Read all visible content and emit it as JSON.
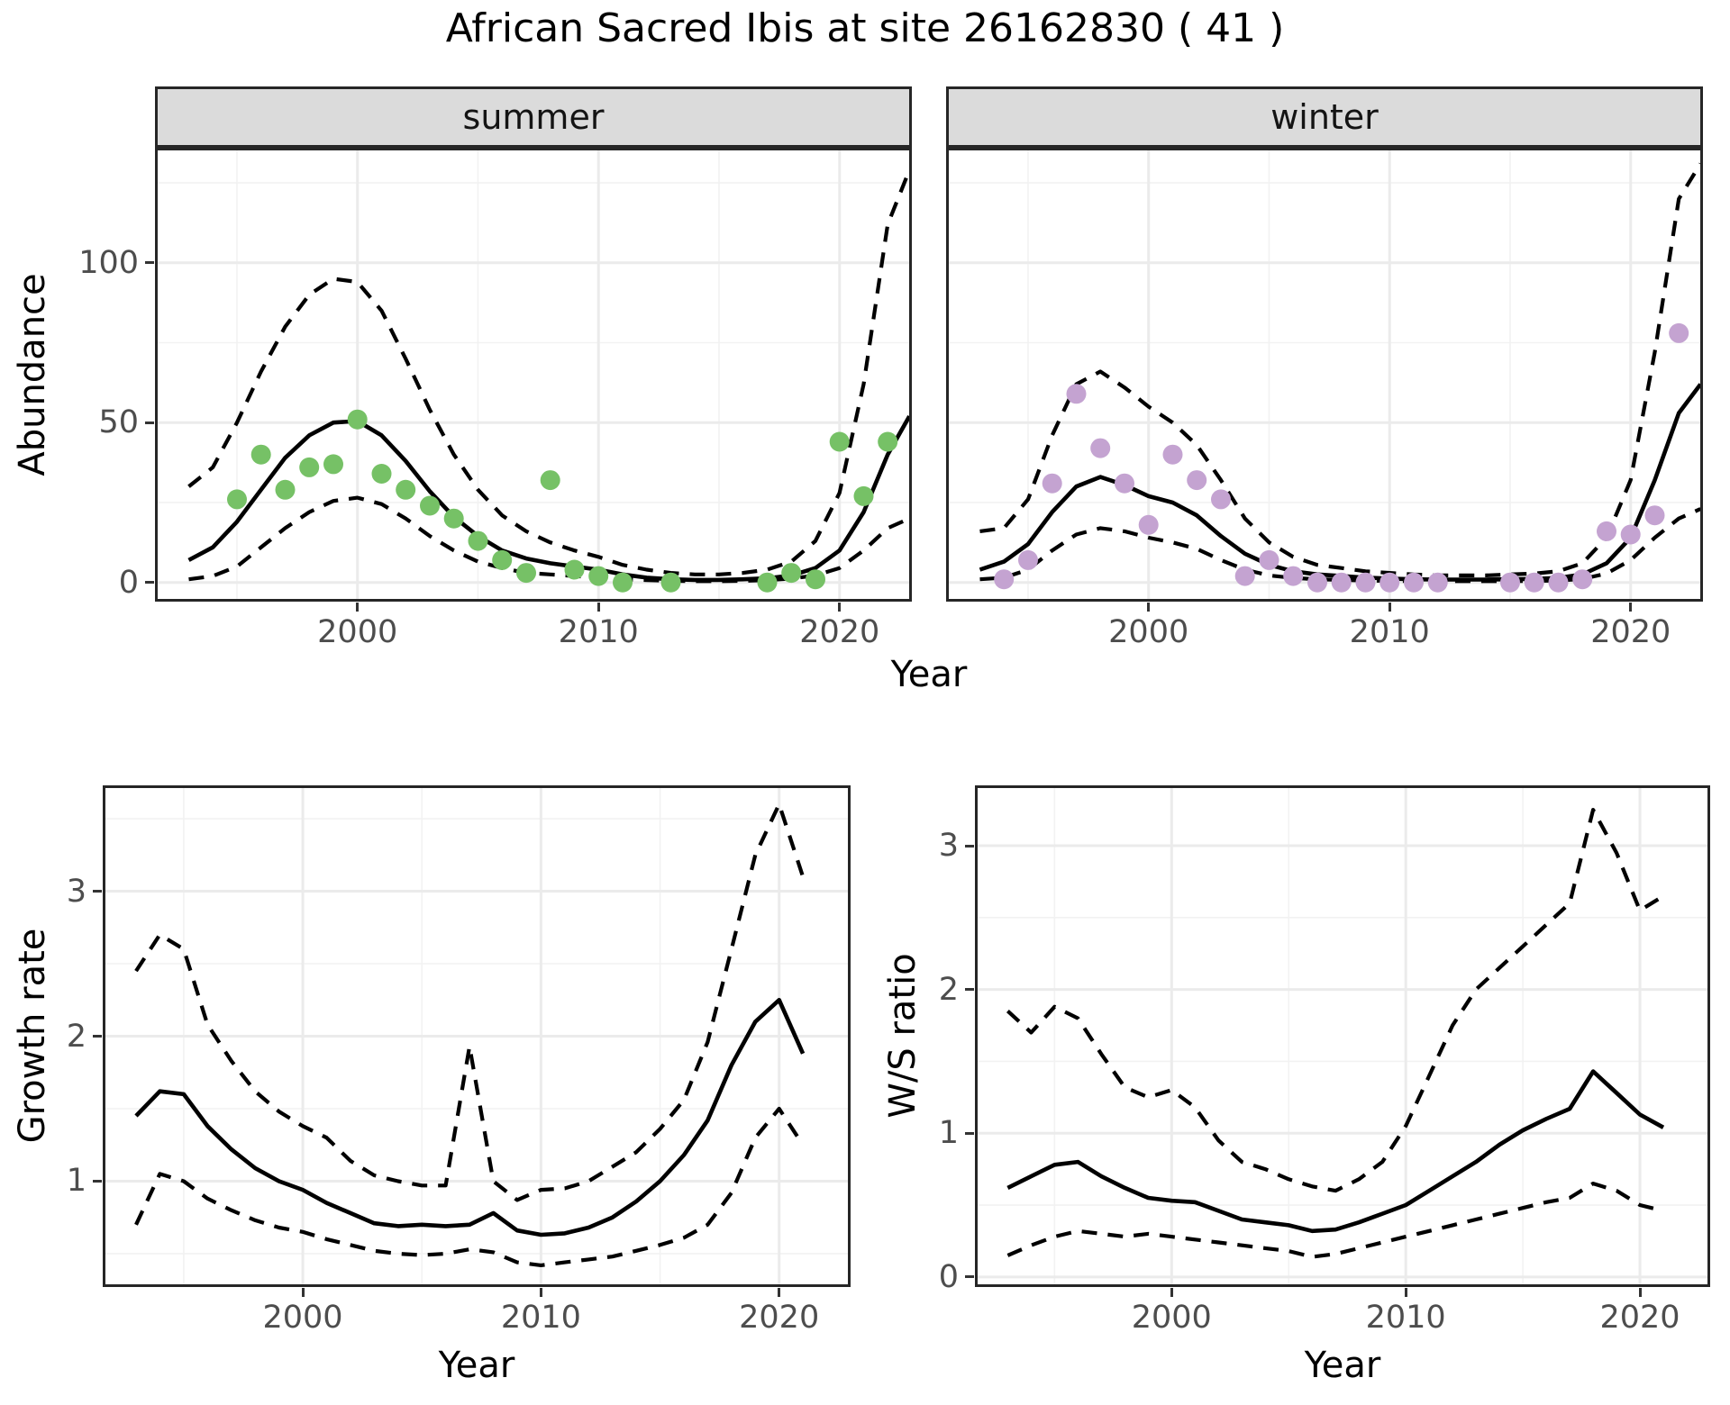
{
  "title": "African Sacred Ibis at site 26162830 ( 41 )",
  "colors": {
    "summer_points": "#76C166",
    "winter_points": "#C4A3D1",
    "fit_line": "#000000",
    "ci_line": "#000000",
    "grid_major": "#EBEBEB",
    "grid_minor": "#F2F2F2",
    "strip_bg": "#DBDBDB",
    "panel_border": "#262626",
    "tick_label": "#4D4D4D"
  },
  "chart_data": {
    "abundance": {
      "type": "scatter",
      "xlabel": "Year",
      "ylabel": "Abundance",
      "x_ticks": [
        2000,
        2010,
        2020
      ],
      "y_ticks": [
        0,
        50,
        100
      ],
      "xlim": [
        1991.6,
        2023.0
      ],
      "ylim": [
        -6,
        136
      ],
      "legend": "none",
      "facets": [
        {
          "label": "summer",
          "point_color": "#76C166",
          "points": {
            "x": [
              1995,
              1996,
              1997,
              1998,
              1999,
              2000,
              2001,
              2002,
              2003,
              2004,
              2005,
              2006,
              2007,
              2008,
              2009,
              2010,
              2011,
              2013,
              2017,
              2018,
              2019,
              2020,
              2021,
              2022
            ],
            "y": [
              26,
              40,
              29,
              36,
              37,
              51,
              34,
              29,
              24,
              20,
              13,
              7,
              3,
              32,
              4,
              2,
              0,
              0,
              0,
              3,
              1,
              44,
              27,
              44
            ]
          },
          "fit": {
            "x": [
              1993,
              1994,
              1995,
              1996,
              1997,
              1998,
              1999,
              2000,
              2001,
              2002,
              2003,
              2004,
              2005,
              2006,
              2007,
              2008,
              2009,
              2010,
              2011,
              2012,
              2013,
              2014,
              2015,
              2016,
              2017,
              2018,
              2019,
              2020,
              2021,
              2022,
              2022.9
            ],
            "mean": [
              7,
              11,
              19,
              29,
              39,
              46,
              50,
              50.5,
              46,
              38,
              28.5,
              20.5,
              14.5,
              10,
              7.5,
              6,
              5,
              4,
              2.5,
              1.5,
              1,
              0.8,
              0.8,
              1,
              1.3,
              2.2,
              4.5,
              10,
              22,
              40,
              52
            ],
            "upper": [
              30,
              36,
              50,
              66,
              80,
              90,
              95,
              94,
              85,
              70,
              54,
              40,
              29,
              21,
              16,
              12.5,
              10,
              8,
              5.5,
              4,
              3,
              2.5,
              2.5,
              3,
              4,
              6.5,
              13,
              28,
              62,
              112,
              129
            ],
            "lower": [
              1,
              2,
              5,
              11,
              17,
              22,
              25.5,
              26.5,
              24.5,
              20,
              14.5,
              10,
              6.5,
              4.5,
              3,
              2.5,
              2,
              1.6,
              1,
              0.7,
              0.5,
              0.4,
              0.4,
              0.5,
              0.7,
              1.2,
              2.2,
              4.5,
              10,
              17,
              20
            ]
          }
        },
        {
          "label": "winter",
          "point_color": "#C4A3D1",
          "points": {
            "x": [
              1994,
              1995,
              1996,
              1997,
              1998,
              1999,
              2000,
              2001,
              2002,
              2003,
              2004,
              2005,
              2006,
              2007,
              2008,
              2009,
              2010,
              2011,
              2012,
              2015,
              2016,
              2017,
              2018,
              2019,
              2020,
              2021,
              2022
            ],
            "y": [
              1,
              7,
              31,
              59,
              42,
              31,
              18,
              40,
              32,
              26,
              2,
              7,
              2,
              0,
              0,
              0,
              0,
              0,
              0,
              0,
              0,
              0,
              1,
              16,
              15,
              21,
              78
            ]
          },
          "fit": {
            "x": [
              1993,
              1994,
              1995,
              1996,
              1997,
              1998,
              1999,
              2000,
              2001,
              2002,
              2003,
              2004,
              2005,
              2006,
              2007,
              2008,
              2009,
              2010,
              2011,
              2012,
              2013,
              2014,
              2015,
              2016,
              2017,
              2018,
              2019,
              2020,
              2021,
              2022,
              2022.9
            ],
            "mean": [
              4,
              6.5,
              12,
              22,
              30,
              33,
              30.5,
              27,
              25,
              21,
              14.5,
              9,
              5.5,
              3.5,
              2.5,
              2,
              1.5,
              1.2,
              1,
              0.9,
              0.9,
              0.9,
              1,
              1.1,
              1.4,
              2.5,
              6,
              14,
              32,
              53,
              62
            ],
            "upper": [
              16,
              17,
              26,
              46,
              62,
              66,
              61,
              55,
              50,
              43,
              32,
              20,
              12.5,
              8,
              5.5,
              4.5,
              3.5,
              3,
              2.5,
              2.2,
              2.2,
              2.2,
              2.5,
              2.8,
              3.5,
              6,
              14,
              32,
              72,
              120,
              131
            ],
            "lower": [
              1,
              1.5,
              4,
              10,
              15,
              17,
              16,
              14,
              12.5,
              10.5,
              7,
              4,
              2.2,
              1.4,
              1,
              0.8,
              0.6,
              0.5,
              0.4,
              0.4,
              0.4,
              0.4,
              0.4,
              0.5,
              0.6,
              1.1,
              2.8,
              7,
              14,
              20,
              23
            ]
          }
        }
      ]
    },
    "growth_rate": {
      "type": "line",
      "xlabel": "Year",
      "ylabel": "Growth rate",
      "x_ticks": [
        2000,
        2010,
        2020
      ],
      "y_ticks": [
        1,
        2,
        3
      ],
      "xlim": [
        1991.6,
        2023.0
      ],
      "ylim": [
        0.27,
        3.73
      ],
      "x": [
        1993,
        1994,
        1995,
        1996,
        1997,
        1998,
        1999,
        2000,
        2001,
        2002,
        2003,
        2004,
        2005,
        2006,
        2007,
        2008,
        2009,
        2010,
        2011,
        2012,
        2013,
        2014,
        2015,
        2016,
        2017,
        2018,
        2019,
        2020,
        2021
      ],
      "mean": [
        1.45,
        1.62,
        1.6,
        1.38,
        1.22,
        1.09,
        1.0,
        0.94,
        0.85,
        0.78,
        0.71,
        0.69,
        0.7,
        0.69,
        0.7,
        0.78,
        0.66,
        0.63,
        0.64,
        0.68,
        0.75,
        0.86,
        1.0,
        1.18,
        1.42,
        1.8,
        2.1,
        2.25,
        1.88
      ],
      "upper": [
        2.45,
        2.7,
        2.6,
        2.08,
        1.83,
        1.62,
        1.48,
        1.38,
        1.3,
        1.14,
        1.04,
        1.0,
        0.97,
        0.97,
        1.93,
        1.0,
        0.87,
        0.94,
        0.95,
        1.0,
        1.1,
        1.2,
        1.36,
        1.56,
        1.96,
        2.6,
        3.25,
        3.6,
        3.1
      ],
      "lower": [
        0.7,
        1.05,
        1.0,
        0.88,
        0.8,
        0.73,
        0.68,
        0.65,
        0.6,
        0.56,
        0.52,
        0.5,
        0.49,
        0.5,
        0.53,
        0.51,
        0.44,
        0.42,
        0.44,
        0.46,
        0.48,
        0.52,
        0.56,
        0.61,
        0.7,
        0.92,
        1.3,
        1.5,
        1.25
      ]
    },
    "ws_ratio": {
      "type": "line",
      "xlabel": "Year",
      "ylabel": "W/S ratio",
      "x_ticks": [
        2000,
        2010,
        2020
      ],
      "y_ticks": [
        0,
        1,
        2,
        3
      ],
      "xlim": [
        1991.6,
        2023.0
      ],
      "ylim": [
        -0.07,
        3.42
      ],
      "x": [
        1993,
        1994,
        1995,
        1996,
        1997,
        1998,
        1999,
        2000,
        2001,
        2002,
        2003,
        2004,
        2005,
        2006,
        2007,
        2008,
        2009,
        2010,
        2011,
        2012,
        2013,
        2014,
        2015,
        2016,
        2017,
        2018,
        2019,
        2020,
        2021
      ],
      "mean": [
        0.62,
        0.7,
        0.78,
        0.8,
        0.7,
        0.62,
        0.55,
        0.53,
        0.52,
        0.46,
        0.4,
        0.38,
        0.36,
        0.32,
        0.33,
        0.38,
        0.44,
        0.5,
        0.6,
        0.7,
        0.8,
        0.92,
        1.02,
        1.1,
        1.17,
        1.43,
        1.28,
        1.13,
        1.04
      ],
      "upper": [
        1.85,
        1.7,
        1.88,
        1.8,
        1.55,
        1.32,
        1.25,
        1.3,
        1.18,
        0.95,
        0.8,
        0.75,
        0.68,
        0.63,
        0.6,
        0.68,
        0.8,
        1.05,
        1.4,
        1.75,
        2.0,
        2.15,
        2.3,
        2.45,
        2.6,
        3.25,
        2.95,
        2.55,
        2.65
      ],
      "lower": [
        0.15,
        0.22,
        0.28,
        0.32,
        0.3,
        0.28,
        0.3,
        0.28,
        0.26,
        0.24,
        0.22,
        0.2,
        0.18,
        0.14,
        0.16,
        0.2,
        0.24,
        0.28,
        0.32,
        0.36,
        0.4,
        0.44,
        0.48,
        0.52,
        0.55,
        0.65,
        0.6,
        0.5,
        0.46
      ]
    }
  }
}
